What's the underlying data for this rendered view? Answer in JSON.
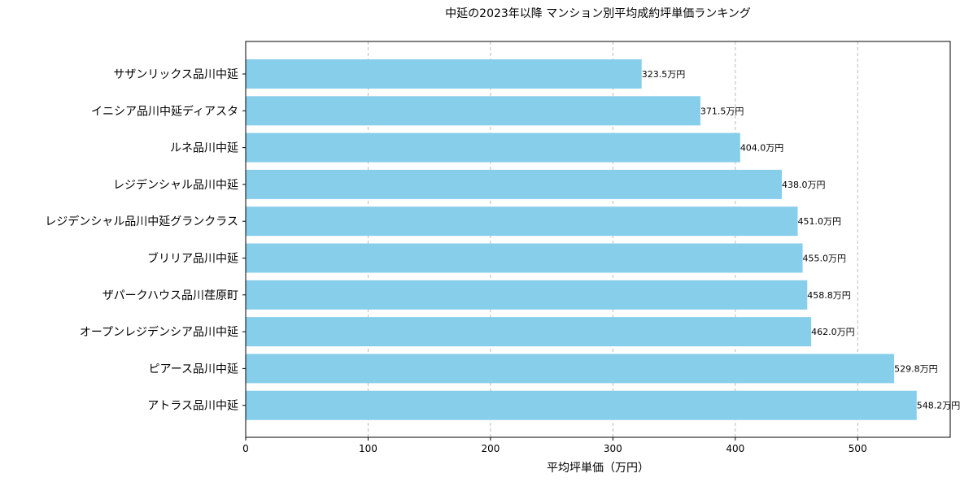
{
  "chart_data": {
    "type": "bar",
    "orientation": "horizontal",
    "title": "中延の2023年以降 マンション別平均成約坪単価ランキング",
    "xlabel": "平均坪単価（万円）",
    "ylabel": "",
    "xlim": [
      0,
      575.6
    ],
    "xticks": [
      0,
      100,
      200,
      300,
      400,
      500
    ],
    "grid": "x-dashed",
    "bar_color": "#87CEEB",
    "value_suffix": "万円",
    "categories": [
      "サザンリックス品川中延",
      "イニシア品川中延ディアスタ",
      "ルネ品川中延",
      "レジデンシャル品川中延",
      "レジデンシャル品川中延グランクラス",
      "ブリリア品川中延",
      "ザパークハウス品川荏原町",
      "オープンレジデンシア品川中延",
      "ピアース品川中延",
      "アトラス品川中延"
    ],
    "values": [
      323.5,
      371.5,
      404.0,
      438.0,
      451.0,
      455.0,
      458.8,
      462.0,
      529.8,
      548.2
    ],
    "data_labels": [
      "323.5万円",
      "371.5万円",
      "404.0万円",
      "438.0万円",
      "451.0万円",
      "455.0万円",
      "458.8万円",
      "462.0万円",
      "529.8万円",
      "548.2万円"
    ]
  }
}
